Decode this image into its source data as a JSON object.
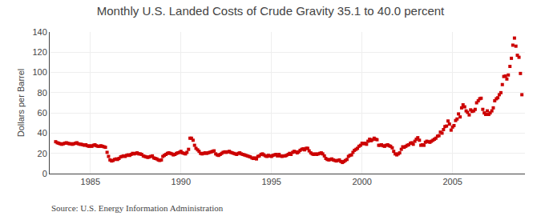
{
  "chart_data": {
    "type": "scatter",
    "title": "Monthly U.S. Landed Costs of Crude Gravity 35.1 to 40.0 percent",
    "ylabel": "Dollars per Barrel",
    "annotations": [
      "Source: U.S. Energy Information Administration"
    ],
    "color": "#cc0000",
    "marker": "square",
    "grid": true,
    "xlim": [
      1982.75,
      2009.0
    ],
    "xticks": [
      1985,
      1990,
      1995,
      2000,
      2005
    ],
    "ylim": [
      0,
      140
    ],
    "yticks": [
      0,
      20,
      40,
      60,
      80,
      100,
      120,
      140
    ],
    "x": [
      1983.08,
      1983.17,
      1983.25,
      1983.33,
      1983.42,
      1983.5,
      1983.58,
      1983.67,
      1983.75,
      1983.83,
      1983.92,
      1984.0,
      1984.08,
      1984.17,
      1984.25,
      1984.33,
      1984.42,
      1984.5,
      1984.58,
      1984.67,
      1984.75,
      1984.83,
      1984.92,
      1985.0,
      1985.08,
      1985.17,
      1985.25,
      1985.33,
      1985.42,
      1985.5,
      1985.58,
      1985.67,
      1985.75,
      1985.83,
      1985.92,
      1986.0,
      1986.08,
      1986.17,
      1986.25,
      1986.33,
      1986.42,
      1986.5,
      1986.58,
      1986.67,
      1986.75,
      1986.83,
      1986.92,
      1987.0,
      1987.08,
      1987.17,
      1987.25,
      1987.33,
      1987.42,
      1987.5,
      1987.58,
      1987.67,
      1987.75,
      1987.83,
      1987.92,
      1988.0,
      1988.08,
      1988.17,
      1988.25,
      1988.33,
      1988.42,
      1988.5,
      1988.58,
      1988.67,
      1988.75,
      1988.83,
      1988.92,
      1989.0,
      1989.08,
      1989.17,
      1989.25,
      1989.33,
      1989.42,
      1989.5,
      1989.58,
      1989.67,
      1989.75,
      1989.83,
      1989.92,
      1990.0,
      1990.08,
      1990.17,
      1990.25,
      1990.33,
      1990.42,
      1990.5,
      1990.58,
      1990.67,
      1990.75,
      1990.83,
      1990.92,
      1991.0,
      1991.08,
      1991.17,
      1991.25,
      1991.33,
      1991.42,
      1991.5,
      1991.58,
      1991.67,
      1991.75,
      1991.83,
      1991.92,
      1992.0,
      1992.08,
      1992.17,
      1992.25,
      1992.33,
      1992.42,
      1992.5,
      1992.58,
      1992.67,
      1992.75,
      1992.83,
      1992.92,
      1993.0,
      1993.08,
      1993.17,
      1993.25,
      1993.33,
      1993.42,
      1993.5,
      1993.58,
      1993.67,
      1993.75,
      1993.83,
      1993.92,
      1994.0,
      1994.08,
      1994.17,
      1994.25,
      1994.33,
      1994.42,
      1994.5,
      1994.58,
      1994.67,
      1994.75,
      1994.83,
      1994.92,
      1995.0,
      1995.08,
      1995.17,
      1995.25,
      1995.33,
      1995.42,
      1995.5,
      1995.58,
      1995.67,
      1995.75,
      1995.83,
      1995.92,
      1996.0,
      1996.08,
      1996.17,
      1996.25,
      1996.33,
      1996.42,
      1996.5,
      1996.58,
      1996.67,
      1996.75,
      1996.83,
      1996.92,
      1997.0,
      1997.08,
      1997.17,
      1997.25,
      1997.33,
      1997.42,
      1997.5,
      1997.58,
      1997.67,
      1997.75,
      1997.83,
      1997.92,
      1998.0,
      1998.08,
      1998.17,
      1998.25,
      1998.33,
      1998.42,
      1998.5,
      1998.58,
      1998.67,
      1998.75,
      1998.83,
      1998.92,
      1999.0,
      1999.08,
      1999.17,
      1999.25,
      1999.33,
      1999.42,
      1999.5,
      1999.58,
      1999.67,
      1999.75,
      1999.83,
      1999.92,
      2000.0,
      2000.08,
      2000.17,
      2000.25,
      2000.33,
      2000.42,
      2000.5,
      2000.58,
      2000.67,
      2000.75,
      2000.83,
      2000.92,
      2001.0,
      2001.08,
      2001.17,
      2001.25,
      2001.33,
      2001.42,
      2001.5,
      2001.58,
      2001.67,
      2001.75,
      2001.83,
      2001.92,
      2002.0,
      2002.08,
      2002.17,
      2002.25,
      2002.33,
      2002.42,
      2002.5,
      2002.58,
      2002.67,
      2002.75,
      2002.83,
      2002.92,
      2003.0,
      2003.08,
      2003.17,
      2003.25,
      2003.33,
      2003.42,
      2003.5,
      2003.58,
      2003.67,
      2003.75,
      2003.83,
      2003.92,
      2004.0,
      2004.08,
      2004.17,
      2004.25,
      2004.33,
      2004.42,
      2004.5,
      2004.58,
      2004.67,
      2004.75,
      2004.83,
      2004.92,
      2005.0,
      2005.08,
      2005.17,
      2005.25,
      2005.33,
      2005.42,
      2005.5,
      2005.58,
      2005.67,
      2005.75,
      2005.83,
      2005.92,
      2006.0,
      2006.08,
      2006.17,
      2006.25,
      2006.33,
      2006.42,
      2006.5,
      2006.58,
      2006.67,
      2006.75,
      2006.83,
      2006.92,
      2007.0,
      2007.08,
      2007.17,
      2007.25,
      2007.33,
      2007.42,
      2007.5,
      2007.58,
      2007.67,
      2007.75,
      2007.83,
      2007.92,
      2008.0,
      2008.08,
      2008.17,
      2008.25,
      2008.33,
      2008.42,
      2008.5,
      2008.58,
      2008.67,
      2008.75,
      2008.83
    ],
    "values": [
      31.5,
      30.5,
      30.0,
      29.5,
      29.0,
      29.5,
      30.0,
      30.5,
      30.0,
      29.5,
      29.5,
      29.0,
      29.5,
      30.0,
      30.5,
      29.5,
      29.0,
      29.0,
      28.5,
      28.0,
      28.5,
      27.5,
      27.0,
      27.5,
      27.0,
      28.0,
      28.5,
      27.5,
      27.0,
      27.0,
      27.5,
      27.0,
      26.5,
      26.0,
      21.0,
      17.0,
      13.5,
      12.5,
      13.0,
      14.0,
      14.5,
      14.0,
      15.0,
      16.5,
      17.0,
      17.5,
      17.0,
      18.0,
      18.5,
      18.0,
      19.0,
      20.0,
      19.5,
      20.0,
      20.5,
      19.5,
      19.5,
      19.0,
      17.5,
      17.0,
      16.5,
      16.0,
      16.5,
      17.0,
      17.5,
      15.5,
      15.0,
      14.5,
      13.5,
      13.0,
      13.5,
      17.0,
      18.0,
      19.0,
      20.0,
      20.5,
      20.0,
      19.5,
      18.5,
      19.0,
      20.0,
      20.5,
      21.0,
      22.0,
      20.5,
      20.0,
      19.5,
      21.0,
      24.0,
      35.0,
      35.0,
      33.0,
      28.0,
      25.0,
      23.5,
      22.0,
      20.0,
      19.5,
      20.0,
      20.5,
      20.0,
      20.5,
      21.0,
      21.5,
      22.0,
      22.5,
      19.5,
      18.5,
      18.0,
      19.0,
      20.0,
      21.0,
      21.5,
      21.0,
      21.5,
      22.0,
      21.0,
      20.5,
      20.0,
      19.5,
      19.0,
      20.0,
      20.5,
      19.5,
      19.0,
      18.5,
      18.0,
      17.5,
      17.0,
      16.5,
      15.5,
      15.0,
      15.5,
      14.5,
      17.0,
      17.5,
      19.0,
      19.5,
      18.5,
      17.5,
      17.0,
      18.0,
      17.5,
      17.0,
      18.0,
      18.5,
      19.0,
      17.5,
      19.0,
      17.5,
      17.0,
      17.5,
      17.5,
      18.0,
      19.0,
      20.0,
      19.0,
      21.0,
      22.0,
      21.5,
      20.5,
      21.5,
      23.0,
      24.0,
      24.5,
      23.5,
      25.0,
      25.0,
      22.5,
      20.5,
      19.5,
      19.0,
      19.5,
      19.0,
      19.5,
      20.0,
      20.5,
      19.5,
      17.5,
      15.0,
      14.0,
      13.5,
      14.0,
      14.5,
      13.5,
      13.0,
      12.5,
      13.0,
      13.5,
      12.0,
      11.0,
      12.0,
      13.0,
      14.0,
      17.0,
      18.0,
      18.5,
      21.0,
      23.0,
      24.0,
      25.0,
      27.0,
      28.0,
      30.0,
      29.5,
      30.0,
      29.0,
      32.0,
      34.0,
      32.5,
      33.5,
      35.0,
      34.0,
      33.5,
      28.0,
      28.0,
      28.5,
      27.5,
      27.0,
      28.0,
      28.5,
      27.5,
      27.0,
      25.5,
      22.0,
      19.5,
      18.5,
      19.5,
      20.5,
      24.0,
      26.5,
      26.0,
      27.0,
      28.0,
      28.5,
      30.0,
      30.5,
      29.0,
      32.0,
      34.0,
      35.5,
      33.0,
      28.0,
      28.5,
      28.0,
      31.0,
      32.0,
      31.5,
      31.0,
      32.0,
      33.0,
      34.0,
      35.0,
      37.0,
      37.5,
      41.0,
      40.0,
      43.5,
      46.5,
      47.0,
      52.0,
      49.0,
      43.0,
      46.0,
      47.5,
      52.5,
      54.0,
      59.0,
      56.0,
      65.0,
      68.0,
      66.0,
      62.0,
      60.5,
      58.0,
      63.0,
      61.5,
      62.0,
      63.5,
      70.0,
      72.0,
      74.0,
      74.5,
      63.5,
      60.0,
      58.5,
      62.0,
      58.5,
      60.0,
      62.0,
      65.0,
      72.0,
      74.0,
      75.0,
      78.0,
      80.0,
      88.0,
      96.0,
      96.5,
      93.5,
      97.5,
      106.0,
      114.0,
      127.0,
      134.0,
      126.0,
      117.0,
      115.0,
      99.0,
      78.0
    ]
  }
}
